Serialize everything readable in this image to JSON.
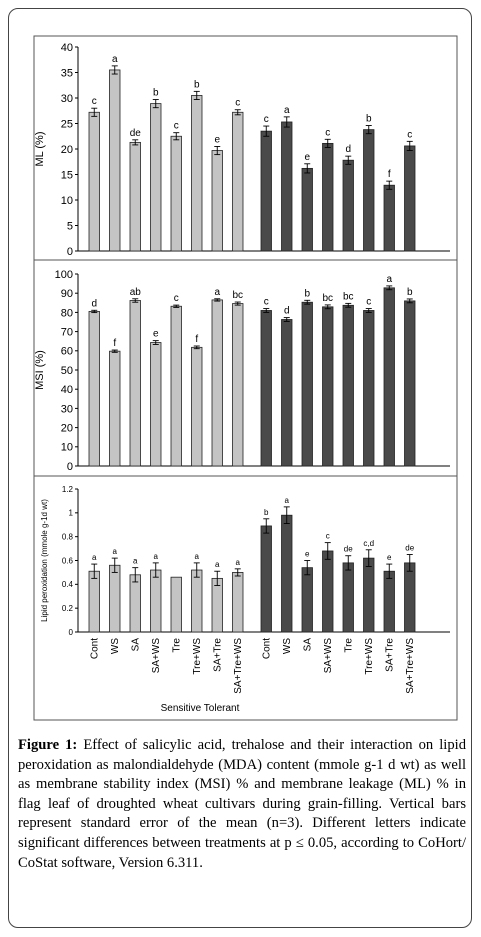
{
  "colors": {
    "sensitive": "#c4c4c4",
    "tolerant": "#4a4a4a",
    "outline": "#222222"
  },
  "x_groups_label": "Sensitive Tolerant",
  "chart_data": [
    {
      "type": "bar",
      "ylabel": "ML (%)",
      "ylim": [
        0,
        40
      ],
      "yticks": [
        "0",
        "5",
        "10",
        "15",
        "20",
        "25",
        "30",
        "35",
        "40"
      ],
      "series": [
        {
          "name": "",
          "values": [
            27.2,
            35.5,
            21.3,
            28.9,
            22.5,
            30.5,
            19.7,
            27.2
          ],
          "errors": [
            0.8,
            0.8,
            0.5,
            0.8,
            0.7,
            0.8,
            0.8,
            0.5
          ],
          "letters": [
            "c",
            "a",
            "de",
            "b",
            "c",
            "b",
            "e",
            "c"
          ]
        },
        {
          "name": "",
          "values": [
            23.5,
            25.3,
            16.2,
            21.1,
            17.8,
            23.8,
            12.9,
            20.6
          ],
          "errors": [
            1.0,
            1.0,
            0.9,
            0.8,
            0.8,
            0.8,
            0.8,
            0.9
          ],
          "letters": [
            "c",
            "a",
            "e",
            "c",
            "d",
            "b",
            "f",
            "c"
          ]
        }
      ]
    },
    {
      "type": "bar",
      "ylabel": "MSI (%)",
      "ylim": [
        0,
        100
      ],
      "yticks": [
        "0",
        "10",
        "20",
        "30",
        "40",
        "50",
        "60",
        "70",
        "80",
        "90",
        "100"
      ],
      "series": [
        {
          "name": "",
          "values": [
            80.5,
            59.8,
            86.2,
            64.3,
            83.2,
            61.8,
            86.5,
            84.6
          ],
          "errors": [
            0.6,
            0.6,
            0.9,
            1.0,
            0.6,
            0.7,
            0.6,
            0.8
          ],
          "letters": [
            "d",
            "f",
            "ab",
            "e",
            "c",
            "f",
            "a",
            "bc"
          ]
        },
        {
          "name": "",
          "values": [
            81.0,
            76.3,
            85.3,
            82.9,
            83.7,
            81.0,
            92.8,
            86.0
          ],
          "errors": [
            1.0,
            1.0,
            1.0,
            1.0,
            1.0,
            1.0,
            1.0,
            1.0
          ],
          "letters": [
            "c",
            "d",
            "b",
            "bc",
            "bc",
            "c",
            "a",
            "b"
          ]
        }
      ]
    },
    {
      "type": "bar",
      "ylabel": "Lipid peroxidation (mmole g-1d wt)",
      "ylim": [
        0,
        1.2
      ],
      "yticks": [
        "0",
        "0.2",
        "0.4",
        "0.6",
        "0.8",
        "1",
        "1.2"
      ],
      "categories": [
        "Cont",
        "WS",
        "SA",
        "SA+WS",
        "Tre",
        "Tre+WS",
        "SA+Tre",
        "SA+Tre+WS"
      ],
      "series": [
        {
          "name": "",
          "values": [
            0.51,
            0.56,
            0.48,
            0.52,
            0.46,
            0.52,
            0.45,
            0.5
          ],
          "errors": [
            0.06,
            0.06,
            0.06,
            0.06,
            0.0,
            0.06,
            0.06,
            0.03
          ],
          "letters": [
            "a",
            "a",
            "a",
            "a",
            "",
            "a",
            "a",
            "a"
          ]
        },
        {
          "name": "",
          "values": [
            0.89,
            0.98,
            0.54,
            0.68,
            0.58,
            0.62,
            0.51,
            0.58
          ],
          "errors": [
            0.06,
            0.07,
            0.06,
            0.07,
            0.06,
            0.07,
            0.06,
            0.07
          ],
          "letters": [
            "b",
            "a",
            "e",
            "c",
            "de",
            "c,d",
            "e",
            "de"
          ]
        }
      ]
    }
  ],
  "caption": {
    "label": "Figure 1:",
    "text": " Effect of salicylic acid, trehalose and their interaction on lipid peroxidation as malondialdehyde (MDA) content (mmole g-1 d wt) as well as membrane stability index (MSI) % and membrane leakage (ML) % in flag leaf of droughted wheat cultivars during grain-filling. Vertical bars represent standard error of the mean (n=3). Different letters indicate significant differences between treatments at p ≤ 0.05, according to CoHort/ CoStat software, Version 6.311."
  }
}
